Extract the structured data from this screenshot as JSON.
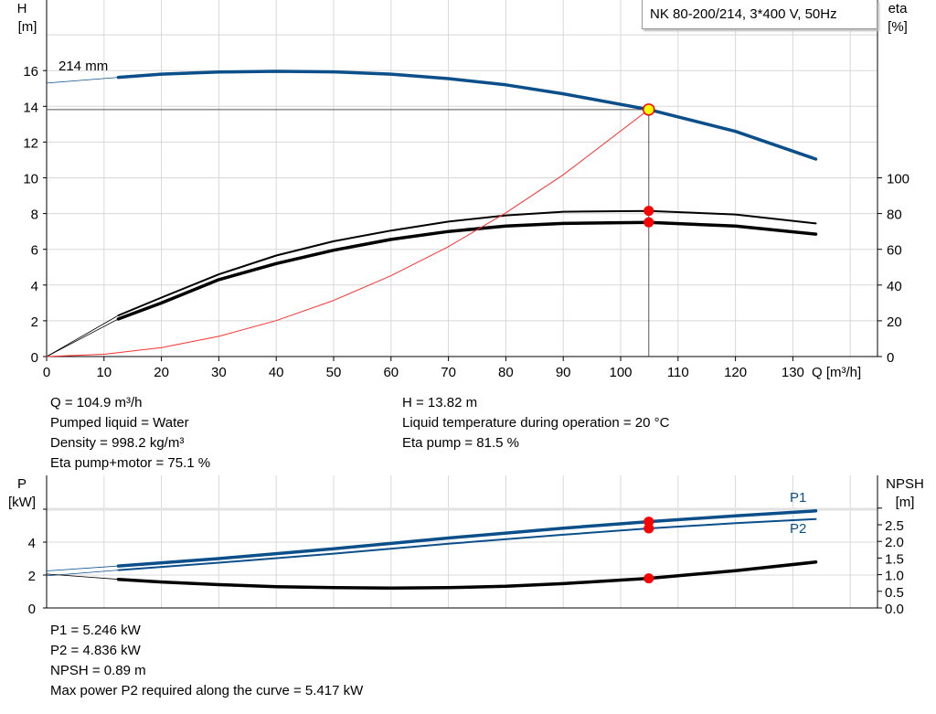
{
  "title": "NK 80-200/214, 3*400 V, 50Hz",
  "chart_data": [
    {
      "type": "line",
      "name": "head-efficiency",
      "xlabel": "Q [m³/h]",
      "ylabel": "H\n[m]",
      "ylabel_unit": "[m]",
      "ylabel_name": "H",
      "y2label_name": "eta",
      "y2label_unit": "[%]",
      "xlim": [
        0,
        145
      ],
      "ylim": [
        0,
        20
      ],
      "y2lim": [
        0,
        200
      ],
      "xticks": [
        0,
        10,
        20,
        30,
        40,
        50,
        60,
        70,
        80,
        90,
        100,
        110,
        120,
        130
      ],
      "yticks": [
        0,
        2,
        4,
        6,
        8,
        10,
        12,
        14,
        16
      ],
      "y2ticks": [
        0,
        20,
        40,
        60,
        80,
        100
      ],
      "grid": true,
      "annotation": "214 mm",
      "series": [
        {
          "key": "head",
          "color": "#0b4f8a",
          "axis": "left",
          "x": [
            12.5,
            20,
            30,
            40,
            50,
            60,
            70,
            80,
            90,
            104.9,
            120,
            134
          ],
          "y": [
            15.62,
            15.8,
            15.92,
            15.96,
            15.93,
            15.8,
            15.55,
            15.2,
            14.7,
            13.82,
            12.6,
            11.05
          ],
          "extension_start": [
            0,
            15.3
          ]
        },
        {
          "key": "eta-pump",
          "color": "#000000",
          "axis": "right",
          "x": [
            12.5,
            20,
            30,
            40,
            50,
            60,
            70,
            80,
            90,
            104.9,
            120,
            134
          ],
          "y": [
            23,
            33,
            46,
            56.5,
            64.5,
            70.5,
            75.5,
            79,
            81,
            81.5,
            79.5,
            74.5
          ],
          "extension_start": [
            0,
            0
          ]
        },
        {
          "key": "eta-pump-motor",
          "color": "#000000",
          "axis": "right",
          "x": [
            12.5,
            20,
            30,
            40,
            50,
            60,
            70,
            80,
            90,
            104.9,
            120,
            134
          ],
          "y": [
            21,
            30,
            43,
            52,
            59.5,
            65.5,
            70,
            73,
            74.5,
            75.1,
            73,
            68.5
          ],
          "extension_start": [
            0,
            0
          ]
        },
        {
          "key": "system-curve",
          "color": "#ff3030",
          "axis": "left",
          "x": [
            0,
            10,
            20,
            30,
            40,
            50,
            60,
            70,
            80,
            90,
            104.9
          ],
          "y": [
            0,
            0.13,
            0.5,
            1.13,
            2.01,
            3.14,
            4.52,
            6.15,
            8.04,
            10.17,
            13.82
          ]
        }
      ],
      "operating_point": {
        "q": 104.9,
        "h": 13.82,
        "eta_pump": 81.5,
        "eta_pump_motor": 75.1
      }
    },
    {
      "type": "line",
      "name": "power-npsh",
      "ylabel_name": "P",
      "ylabel_unit": "[kW]",
      "y2label_name": "NPSH",
      "y2label_unit": "[m]",
      "xlim": [
        0,
        145
      ],
      "ylim": [
        0,
        8
      ],
      "y2lim": [
        0,
        4
      ],
      "yticks": [
        0,
        2,
        4
      ],
      "y2ticks": [
        "0.0",
        "0.5",
        "1.0",
        "1.5",
        "2.0",
        "2.5"
      ],
      "grid": true,
      "series": [
        {
          "key": "p1",
          "name": "P1",
          "color": "#0b4f8a",
          "axis": "left",
          "x": [
            12.5,
            30,
            50,
            70,
            90,
            104.9,
            120,
            134
          ],
          "y": [
            2.55,
            3.0,
            3.6,
            4.25,
            4.85,
            5.246,
            5.6,
            5.9
          ],
          "extension_start": [
            0,
            2.25
          ]
        },
        {
          "key": "p2",
          "name": "P2",
          "color": "#0b4f8a",
          "axis": "left",
          "x": [
            12.5,
            30,
            50,
            70,
            90,
            104.9,
            120,
            134
          ],
          "y": [
            2.3,
            2.75,
            3.3,
            3.9,
            4.45,
            4.836,
            5.15,
            5.4
          ],
          "extension_start": [
            0,
            1.95
          ]
        },
        {
          "key": "npsh",
          "color": "#000000",
          "axis": "right",
          "x": [
            12.5,
            20,
            30,
            40,
            50,
            60,
            70,
            80,
            90,
            104.9,
            120,
            134
          ],
          "y": [
            0.86,
            0.78,
            0.7,
            0.64,
            0.61,
            0.6,
            0.61,
            0.65,
            0.73,
            0.89,
            1.12,
            1.38
          ],
          "extension_start": [
            0,
            1.02
          ]
        }
      ],
      "operating_point": {
        "p1": 5.246,
        "p2": 4.836,
        "npsh": 0.89
      }
    }
  ],
  "info_top_left": [
    "Q = 104.9 m³/h",
    "Pumped liquid = Water",
    "Density = 998.2 kg/m³",
    "Eta pump+motor = 75.1 %"
  ],
  "info_top_right": [
    "H = 13.82 m",
    "Liquid temperature during operation = 20 °C",
    "Eta pump = 81.5 %"
  ],
  "info_bottom": [
    "P1 = 5.246 kW",
    "P2 = 4.836 kW",
    "NPSH = 0.89 m",
    "Max power P2 required along the curve = 5.417 kW"
  ]
}
